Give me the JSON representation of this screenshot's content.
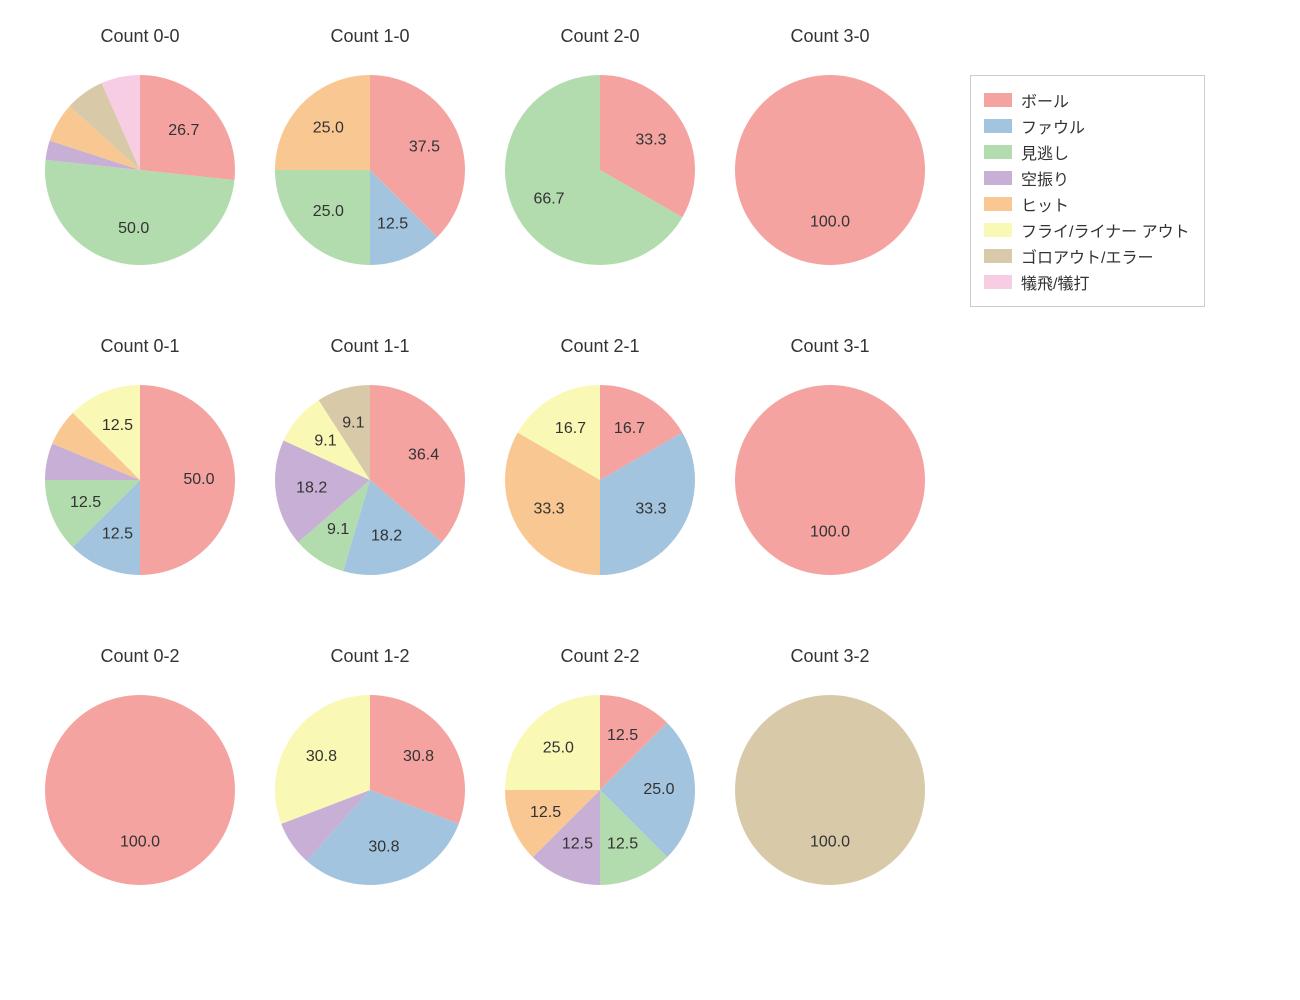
{
  "background_color": "#ffffff",
  "font_family": "Helvetica Neue, Arial, Hiragino Sans, Meiryo, sans-serif",
  "title_fontsize": 18,
  "label_fontsize": 16,
  "label_color": "#333333",
  "pie_radius": 95,
  "label_radius_factor": 0.62,
  "start_angle_deg": 90,
  "direction": "clockwise",
  "categories": [
    {
      "key": "ball",
      "label": "ボール",
      "color": "#f4a3a0"
    },
    {
      "key": "foul",
      "label": "ファウル",
      "color": "#a2c4de"
    },
    {
      "key": "looking",
      "label": "見逃し",
      "color": "#b2dbae"
    },
    {
      "key": "swing",
      "label": "空振り",
      "color": "#c8afd5"
    },
    {
      "key": "hit",
      "label": "ヒット",
      "color": "#f9c791"
    },
    {
      "key": "flyout",
      "label": "フライ/ライナー アウト",
      "color": "#faf8b5"
    },
    {
      "key": "groundout",
      "label": "ゴロアウト/エラー",
      "color": "#d8caa9"
    },
    {
      "key": "sac",
      "label": "犠飛/犠打",
      "color": "#f7cde4"
    }
  ],
  "charts": [
    {
      "id": "c00",
      "title": "Count 0-0",
      "slices": [
        {
          "cat": "ball",
          "value": 26.7
        },
        {
          "cat": "looking",
          "value": 50.0
        },
        {
          "cat": "swing",
          "value": 3.3
        },
        {
          "cat": "hit",
          "value": 6.7
        },
        {
          "cat": "groundout",
          "value": 6.7
        },
        {
          "cat": "sac",
          "value": 6.6
        }
      ],
      "show_labels_min": 10
    },
    {
      "id": "c10",
      "title": "Count 1-0",
      "slices": [
        {
          "cat": "ball",
          "value": 37.5
        },
        {
          "cat": "foul",
          "value": 12.5
        },
        {
          "cat": "looking",
          "value": 25.0
        },
        {
          "cat": "hit",
          "value": 25.0
        }
      ],
      "show_labels_min": 0
    },
    {
      "id": "c20",
      "title": "Count 2-0",
      "slices": [
        {
          "cat": "ball",
          "value": 33.3
        },
        {
          "cat": "looking",
          "value": 66.7
        }
      ],
      "show_labels_min": 0
    },
    {
      "id": "c30",
      "title": "Count 3-0",
      "slices": [
        {
          "cat": "ball",
          "value": 100.0
        }
      ],
      "show_labels_min": 0
    },
    {
      "id": "c01",
      "title": "Count 0-1",
      "slices": [
        {
          "cat": "ball",
          "value": 50.0
        },
        {
          "cat": "foul",
          "value": 12.5
        },
        {
          "cat": "looking",
          "value": 12.5
        },
        {
          "cat": "swing",
          "value": 6.25
        },
        {
          "cat": "hit",
          "value": 6.25
        },
        {
          "cat": "flyout",
          "value": 12.5
        }
      ],
      "show_labels_min": 10
    },
    {
      "id": "c11",
      "title": "Count 1-1",
      "slices": [
        {
          "cat": "ball",
          "value": 36.4
        },
        {
          "cat": "foul",
          "value": 18.2
        },
        {
          "cat": "looking",
          "value": 9.1
        },
        {
          "cat": "swing",
          "value": 18.2
        },
        {
          "cat": "flyout",
          "value": 9.1
        },
        {
          "cat": "groundout",
          "value": 9.1
        }
      ],
      "show_labels_min": 0
    },
    {
      "id": "c21",
      "title": "Count 2-1",
      "slices": [
        {
          "cat": "ball",
          "value": 16.7
        },
        {
          "cat": "foul",
          "value": 33.3
        },
        {
          "cat": "hit",
          "value": 33.3
        },
        {
          "cat": "flyout",
          "value": 16.7
        }
      ],
      "show_labels_min": 0
    },
    {
      "id": "c31",
      "title": "Count 3-1",
      "slices": [
        {
          "cat": "ball",
          "value": 100.0
        }
      ],
      "show_labels_min": 0
    },
    {
      "id": "c02",
      "title": "Count 0-2",
      "slices": [
        {
          "cat": "ball",
          "value": 100.0
        }
      ],
      "show_labels_min": 0
    },
    {
      "id": "c12",
      "title": "Count 1-2",
      "slices": [
        {
          "cat": "ball",
          "value": 30.8
        },
        {
          "cat": "foul",
          "value": 30.8
        },
        {
          "cat": "swing",
          "value": 7.6
        },
        {
          "cat": "flyout",
          "value": 30.8
        }
      ],
      "show_labels_min": 10
    },
    {
      "id": "c22",
      "title": "Count 2-2",
      "slices": [
        {
          "cat": "ball",
          "value": 12.5
        },
        {
          "cat": "foul",
          "value": 25.0
        },
        {
          "cat": "looking",
          "value": 12.5
        },
        {
          "cat": "swing",
          "value": 12.5
        },
        {
          "cat": "hit",
          "value": 12.5
        },
        {
          "cat": "flyout",
          "value": 25.0
        }
      ],
      "show_labels_min": 0
    },
    {
      "id": "c32",
      "title": "Count 3-2",
      "slices": [
        {
          "cat": "groundout",
          "value": 100.0
        }
      ],
      "show_labels_min": 0
    }
  ],
  "legend": {
    "border_color": "#cccccc",
    "swatch_width": 28,
    "swatch_height": 14
  }
}
